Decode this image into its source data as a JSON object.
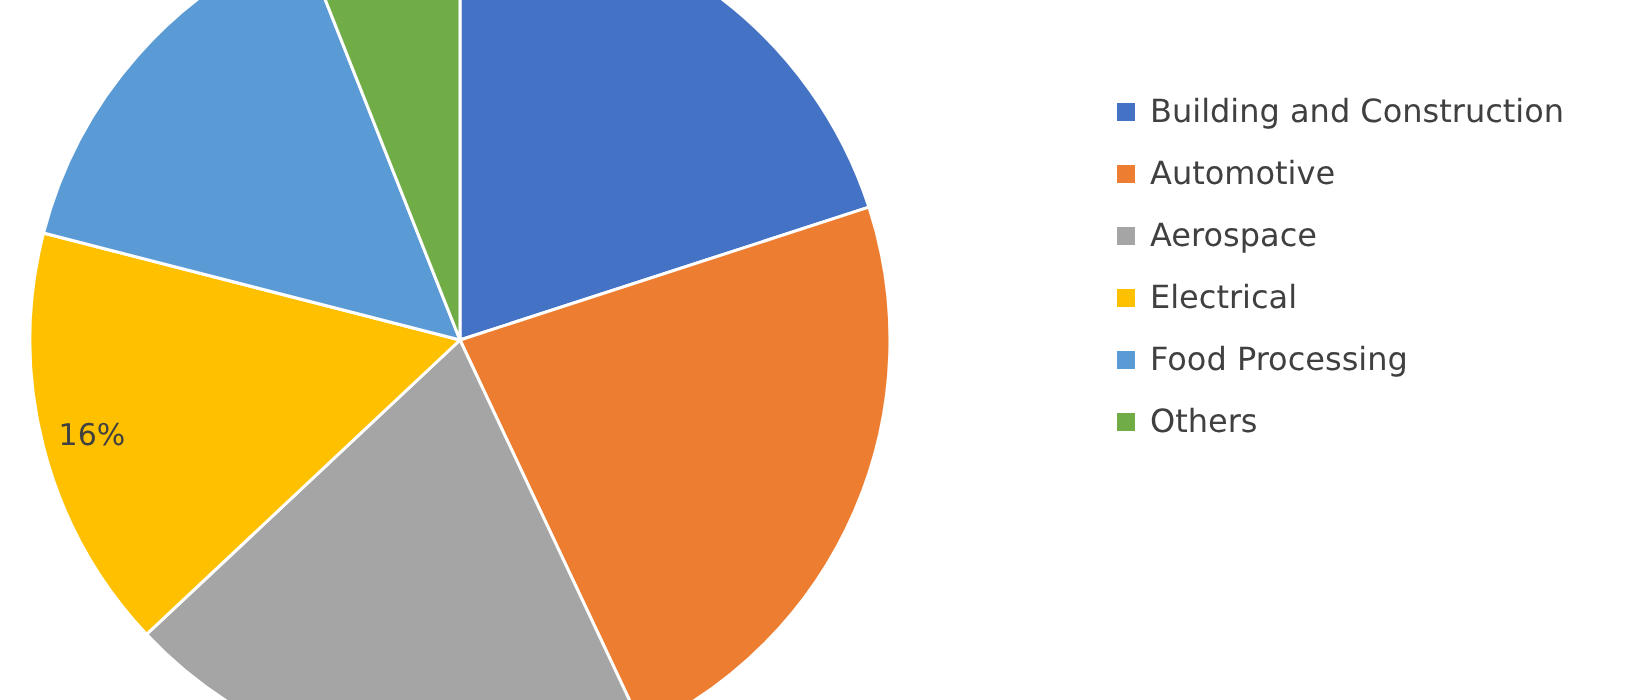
{
  "chart_data": {
    "type": "pie",
    "categories": [
      "Building and Construction",
      "Automotive",
      "Aerospace",
      "Electrical",
      "Food Processing",
      "Others"
    ],
    "values": [
      20,
      23,
      20,
      16,
      15,
      6
    ],
    "colors": [
      "#4472c4",
      "#ed7d31",
      "#a5a5a5",
      "#ffc000",
      "#5b9bd5",
      "#70ad47"
    ],
    "value_labels": [
      null,
      null,
      null,
      "16%",
      null,
      null
    ],
    "legend": "right"
  }
}
